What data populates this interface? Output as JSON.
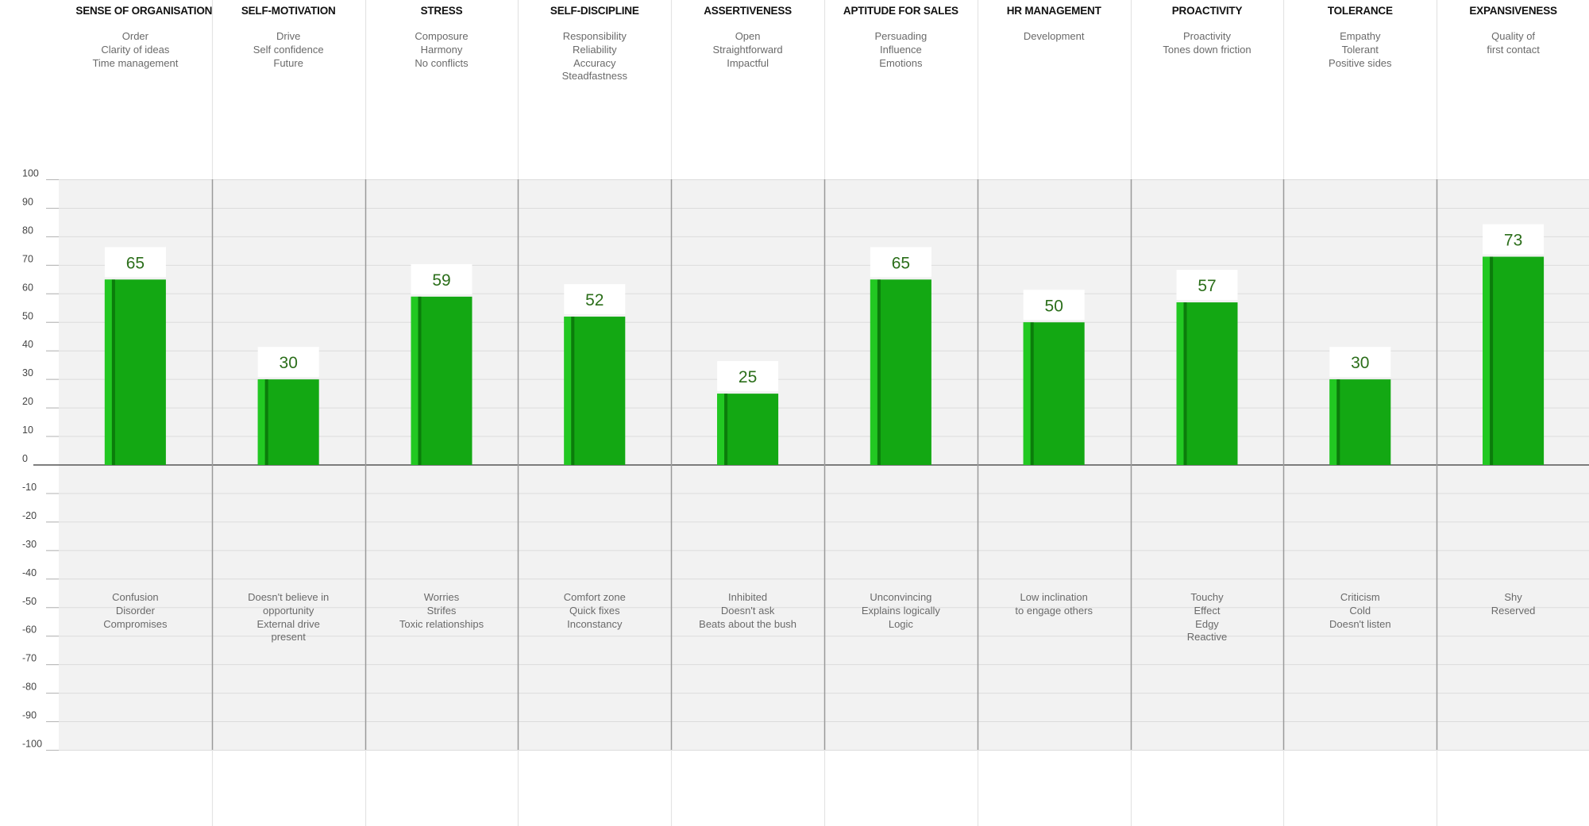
{
  "chart_data": {
    "type": "bar",
    "ylim": [
      -100,
      100
    ],
    "yticks": [
      100,
      90,
      80,
      70,
      60,
      50,
      40,
      30,
      20,
      10,
      0,
      -10,
      -20,
      -30,
      -40,
      -50,
      -60,
      -70,
      -80,
      -90,
      -100
    ],
    "grid": true,
    "colors": {
      "bar": "#13a813",
      "bar_edge": "#0b7c0b",
      "bar_highlight": "#22c822",
      "value_text": "#2b6e1a",
      "plot_bg": "#f2f2f2"
    },
    "categories": [
      {
        "title": "SENSE OF ORGANISATION",
        "value": 65,
        "top_labels": [
          "Order",
          "Clarity of ideas",
          "Time management"
        ],
        "bottom_labels": [
          "Confusion",
          "Disorder",
          "Compromises"
        ]
      },
      {
        "title": "SELF-MOTIVATION",
        "value": 30,
        "top_labels": [
          "Drive",
          "Self confidence",
          "Future"
        ],
        "bottom_labels": [
          "Doesn't believe in",
          "opportunity",
          "External drive",
          "present"
        ]
      },
      {
        "title": "STRESS",
        "value": 59,
        "top_labels": [
          "Composure",
          "Harmony",
          "No conflicts"
        ],
        "bottom_labels": [
          "Worries",
          "Strifes",
          "Toxic relationships"
        ]
      },
      {
        "title": "SELF-DISCIPLINE",
        "value": 52,
        "top_labels": [
          "Responsibility",
          "Reliability",
          "Accuracy",
          "Steadfastness"
        ],
        "bottom_labels": [
          "Comfort zone",
          "Quick fixes",
          "Inconstancy"
        ]
      },
      {
        "title": "ASSERTIVENESS",
        "value": 25,
        "top_labels": [
          "Open",
          "Straightforward",
          "Impactful"
        ],
        "bottom_labels": [
          "Inhibited",
          "Doesn't ask",
          "Beats about the bush"
        ]
      },
      {
        "title": "APTITUDE FOR SALES",
        "value": 65,
        "top_labels": [
          "Persuading",
          "Influence",
          "Emotions"
        ],
        "bottom_labels": [
          "Unconvincing",
          "Explains logically",
          "Logic"
        ]
      },
      {
        "title": "HR MANAGEMENT",
        "value": 50,
        "top_labels": [
          "Development"
        ],
        "bottom_labels": [
          "Low inclination",
          "to engage others"
        ]
      },
      {
        "title": "PROACTIVITY",
        "value": 57,
        "top_labels": [
          "Proactivity",
          "Tones down friction"
        ],
        "bottom_labels": [
          "Touchy",
          "Effect",
          "Edgy",
          "Reactive"
        ]
      },
      {
        "title": "TOLERANCE",
        "value": 30,
        "top_labels": [
          "Empathy",
          "Tolerant",
          "Positive sides"
        ],
        "bottom_labels": [
          "Criticism",
          "Cold",
          "Doesn't listen"
        ]
      },
      {
        "title": "EXPANSIVENESS",
        "value": 73,
        "top_labels": [
          "Quality of",
          "first contact"
        ],
        "bottom_labels": [
          "Shy",
          "Reserved"
        ]
      }
    ]
  }
}
